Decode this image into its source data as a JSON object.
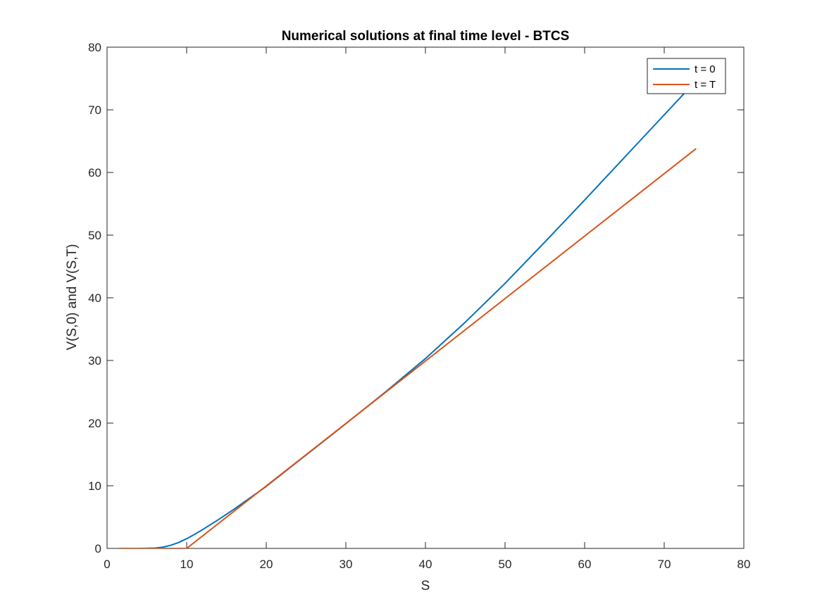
{
  "chart_data": {
    "type": "line",
    "title": "Numerical solutions at final time level - BTCS",
    "xlabel": "S",
    "ylabel": "V(S,0) and V(S,T)",
    "xlim": [
      0,
      80
    ],
    "ylim": [
      0,
      80
    ],
    "xticks": [
      0,
      10,
      20,
      30,
      40,
      50,
      60,
      70,
      80
    ],
    "yticks": [
      0,
      10,
      20,
      30,
      40,
      50,
      60,
      70,
      80
    ],
    "grid": false,
    "legend_position": "top-right",
    "series": [
      {
        "name": "t = 0",
        "color": "#0072BD",
        "x": [
          1.5,
          4,
          6,
          7,
          8,
          9,
          10,
          11,
          12,
          13,
          14,
          16,
          18,
          20,
          25,
          30,
          35,
          40,
          45,
          50,
          55,
          60,
          65,
          70,
          72.5
        ],
        "y": [
          0,
          0,
          0.05,
          0.2,
          0.5,
          0.95,
          1.55,
          2.25,
          3.0,
          3.8,
          4.6,
          6.3,
          8.1,
          9.9,
          14.9,
          19.9,
          25.0,
          30.3,
          36.1,
          42.3,
          48.9,
          55.6,
          62.4,
          69.2,
          72.6
        ]
      },
      {
        "name": "t = T",
        "color": "#D95319",
        "x": [
          1.5,
          10,
          74
        ],
        "y": [
          0,
          0,
          63.8
        ]
      }
    ]
  }
}
